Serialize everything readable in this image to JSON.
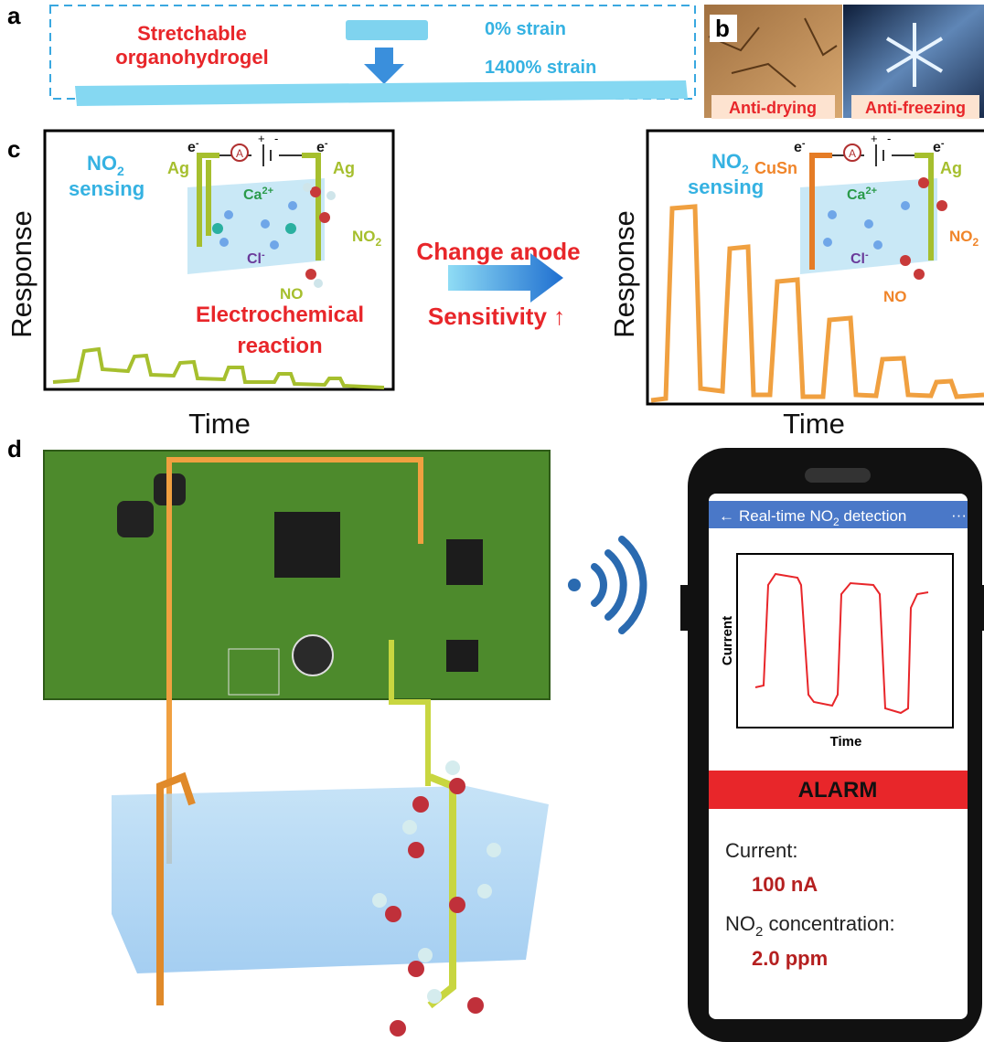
{
  "panel_a": {
    "label": "a",
    "title_lines": [
      "Stretchable",
      "organohydrogel"
    ],
    "strain_low": "0% strain",
    "strain_high": "1400% strain"
  },
  "panel_b": {
    "label": "b",
    "anti_drying": "Anti-drying",
    "anti_freezing": "Anti-freezing"
  },
  "panel_c": {
    "label": "c",
    "left": {
      "gas": "NO",
      "gas_sub": "2",
      "sensing": "sensing",
      "electron": "e",
      "electron_sup": "-",
      "electrode_left": "Ag",
      "electrode_right": "Ag",
      "ammeter": "A",
      "battery_plus": "+",
      "battery_minus": "-",
      "cation": "Ca",
      "cation_sup": "2+",
      "anion": "Cl",
      "anion_sup": "-",
      "reactant": "NO",
      "reactant_sub": "2",
      "product": "NO",
      "reaction_lines": [
        "Electrochemical",
        "reaction"
      ],
      "y_label": "Response",
      "x_label": "Time"
    },
    "middle": {
      "change": "Change anode",
      "sensitivity": "Sensitivity ↑"
    },
    "right": {
      "gas": "NO",
      "gas_sub": "2",
      "sensing": "sensing",
      "electron": "e",
      "electron_sup": "-",
      "electrode_left": "CuSn",
      "electrode_right": "Ag",
      "ammeter": "A",
      "battery_plus": "+",
      "battery_minus": "-",
      "cation": "Ca",
      "cation_sup": "2+",
      "anion": "Cl",
      "anion_sup": "-",
      "reactant": "NO",
      "reactant_sub": "2",
      "product": "NO",
      "y_label": "Response",
      "x_label": "Time"
    }
  },
  "panel_d": {
    "label": "d",
    "phone": {
      "header_arrow": "←",
      "header_title": "Real-time NO",
      "header_sub": "2",
      "header_rest": " detection",
      "menu": "···",
      "y_label": "Current",
      "x_label": "Time",
      "alarm": "ALARM",
      "current_label": "Current:",
      "current_value": "100 nA",
      "conc_label": "NO",
      "conc_sub": "2",
      "conc_rest": " concentration:",
      "conc_value": "2.0 ppm"
    }
  }
}
